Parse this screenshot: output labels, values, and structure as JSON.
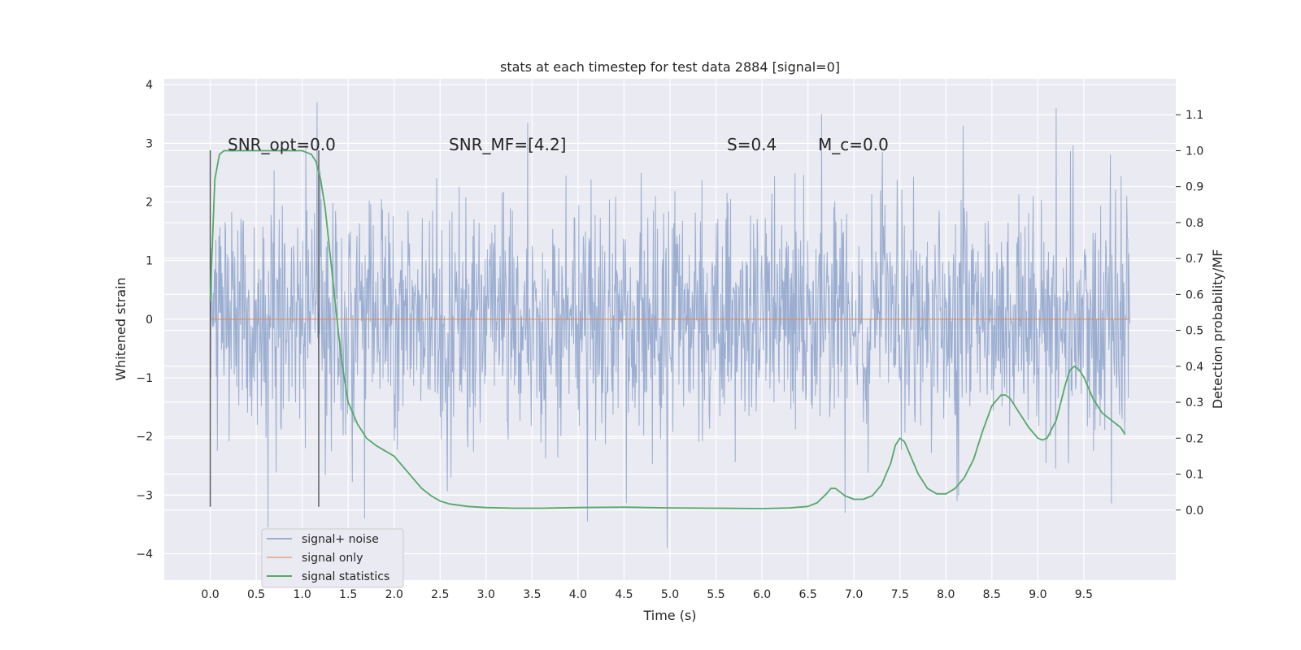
{
  "chart_data": {
    "type": "line",
    "title": "stats at each timestep for test data 2884 [signal=0]",
    "xlabel": "Time (s)",
    "ylabel": "Whitened strain",
    "ylabel_right": "Detection probability/MF",
    "xlim": [
      -0.5,
      10.5
    ],
    "ylim": [
      -4.45,
      4.1
    ],
    "ylim_right": [
      -0.195,
      1.2
    ],
    "grid": true,
    "legend_position": "lower-left",
    "x_ticks": [
      "0.0",
      "0.5",
      "1.0",
      "1.5",
      "2.0",
      "2.5",
      "3.0",
      "3.5",
      "4.0",
      "4.5",
      "5.0",
      "5.5",
      "6.0",
      "6.5",
      "7.0",
      "7.5",
      "8.0",
      "8.5",
      "9.0",
      "9.5"
    ],
    "y_ticks_left": [
      "-4",
      "-3",
      "-2",
      "-1",
      "0",
      "1",
      "2",
      "3",
      "4"
    ],
    "y_ticks_right": [
      "0.0",
      "0.1",
      "0.2",
      "0.3",
      "0.4",
      "0.5",
      "0.6",
      "0.7",
      "0.8",
      "0.9",
      "1.0",
      "1.1"
    ],
    "annotations": [
      {
        "label": "SNR_opt=0.0",
        "x": 0.2,
        "y": 2.9
      },
      {
        "label": "SNR_MF=[4.2]",
        "x": 2.6,
        "y": 2.9
      },
      {
        "label": "S=0.4",
        "x": 5.6,
        "y": 2.9
      },
      {
        "label": "M_c=0.0",
        "x": 6.6,
        "y": 2.9
      }
    ],
    "vertical_lines": [
      {
        "x": 0.0,
        "ymin": -3.2,
        "ymax": 2.88
      },
      {
        "x": 1.18,
        "ymin": -3.2,
        "ymax": 2.88
      }
    ],
    "series": [
      {
        "name": "signal+ noise",
        "color": "#4c72b0",
        "axis": "left",
        "x_range": [
          0.0,
          10.0
        ],
        "approx_amplitude": 1.0,
        "peaks": [
          {
            "x": 1.16,
            "y": 3.7
          },
          {
            "x": 3.45,
            "y": 3.35
          },
          {
            "x": 6.65,
            "y": 3.5
          },
          {
            "x": 9.2,
            "y": 3.6
          },
          {
            "x": 0.63,
            "y": -3.55
          },
          {
            "x": 1.68,
            "y": -3.4
          },
          {
            "x": 4.1,
            "y": -3.45
          },
          {
            "x": 4.97,
            "y": -3.9
          },
          {
            "x": 8.12,
            "y": -3.1
          }
        ]
      },
      {
        "name": "signal only",
        "color": "#dd8452",
        "axis": "left",
        "x": [
          0.0,
          10.0
        ],
        "y": [
          0.0,
          0.0
        ]
      },
      {
        "name": "signal statistics",
        "color": "#55a868",
        "axis": "right",
        "x": [
          0.0,
          0.05,
          0.1,
          0.15,
          0.2,
          0.3,
          0.5,
          0.7,
          0.9,
          1.0,
          1.1,
          1.15,
          1.2,
          1.25,
          1.3,
          1.35,
          1.4,
          1.45,
          1.5,
          1.6,
          1.7,
          1.8,
          1.9,
          2.0,
          2.1,
          2.2,
          2.3,
          2.4,
          2.5,
          2.6,
          2.8,
          3.0,
          3.3,
          3.6,
          4.0,
          4.5,
          5.0,
          5.5,
          6.0,
          6.3,
          6.5,
          6.6,
          6.7,
          6.75,
          6.8,
          6.85,
          6.9,
          7.0,
          7.1,
          7.2,
          7.3,
          7.4,
          7.45,
          7.5,
          7.55,
          7.6,
          7.7,
          7.8,
          7.9,
          8.0,
          8.1,
          8.2,
          8.3,
          8.4,
          8.5,
          8.6,
          8.65,
          8.7,
          8.8,
          8.9,
          9.0,
          9.05,
          9.1,
          9.2,
          9.3,
          9.35,
          9.4,
          9.45,
          9.5,
          9.6,
          9.7,
          9.8,
          9.9,
          9.95
        ],
        "y": [
          0.58,
          0.92,
          0.99,
          1.0,
          1.0,
          1.0,
          1.0,
          1.0,
          1.0,
          1.0,
          0.99,
          0.97,
          0.92,
          0.84,
          0.72,
          0.6,
          0.48,
          0.38,
          0.3,
          0.24,
          0.2,
          0.18,
          0.165,
          0.15,
          0.12,
          0.09,
          0.06,
          0.04,
          0.025,
          0.017,
          0.01,
          0.007,
          0.005,
          0.005,
          0.007,
          0.008,
          0.006,
          0.005,
          0.004,
          0.006,
          0.01,
          0.02,
          0.045,
          0.06,
          0.06,
          0.05,
          0.04,
          0.03,
          0.03,
          0.04,
          0.07,
          0.13,
          0.18,
          0.2,
          0.19,
          0.16,
          0.1,
          0.06,
          0.045,
          0.045,
          0.06,
          0.09,
          0.14,
          0.22,
          0.29,
          0.32,
          0.32,
          0.31,
          0.27,
          0.23,
          0.2,
          0.195,
          0.2,
          0.25,
          0.35,
          0.39,
          0.4,
          0.39,
          0.37,
          0.31,
          0.27,
          0.25,
          0.23,
          0.21
        ]
      }
    ]
  }
}
